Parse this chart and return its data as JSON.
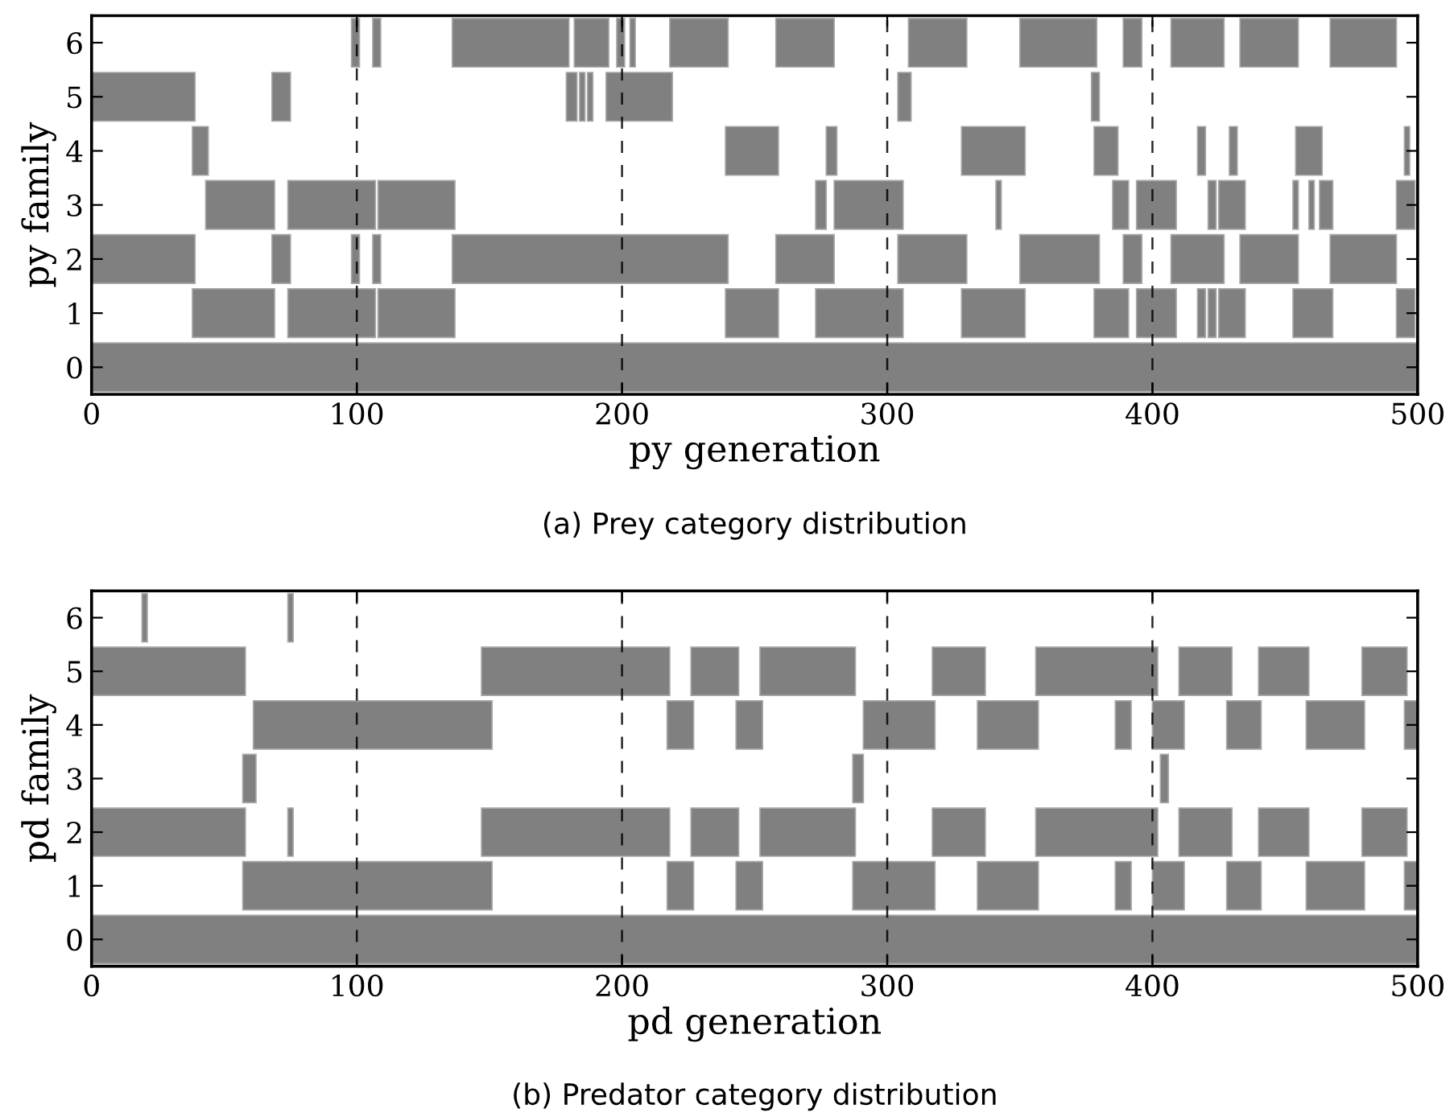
{
  "chart_data": [
    {
      "type": "bar",
      "orientation": "horizontal",
      "xlabel": "py generation",
      "ylabel": "py family",
      "categories": [
        "6",
        "5",
        "4",
        "3",
        "2",
        "1",
        "0"
      ],
      "xlim": [
        0,
        500
      ],
      "xticks": [
        0,
        100,
        200,
        300,
        400,
        500
      ],
      "grid": "x",
      "annotations": [
        "(a) Prey category distribution"
      ],
      "series": [
        {
          "color": "#808080",
          "base": [
            98,
            0,
            38,
            43,
            0,
            38,
            0
          ],
          "values": [
            3,
            39,
            6,
            26,
            39,
            31,
            500
          ]
        },
        {
          "color": "#808080",
          "base": [
            106,
            68,
            239,
            74,
            68,
            74,
            null
          ],
          "values": [
            3,
            7,
            20,
            33,
            7,
            33,
            null
          ]
        },
        {
          "color": "#808080",
          "base": [
            136,
            179,
            277,
            108,
            98,
            108,
            null
          ],
          "values": [
            44,
            4,
            4,
            29,
            3,
            29,
            null
          ]
        },
        {
          "color": "#808080",
          "base": [
            182,
            184,
            328,
            273,
            106,
            239,
            null
          ],
          "values": [
            13,
            2,
            24,
            4,
            3,
            20,
            null
          ]
        },
        {
          "color": "#808080",
          "base": [
            198,
            187,
            378,
            280,
            136,
            273,
            null
          ],
          "values": [
            3,
            2,
            9,
            26,
            104,
            33,
            null
          ]
        },
        {
          "color": "#808080",
          "base": [
            203,
            194,
            417,
            341,
            258,
            328,
            null
          ],
          "values": [
            2,
            25,
            3,
            2,
            22,
            24,
            null
          ]
        },
        {
          "color": "#808080",
          "base": [
            218,
            304,
            429,
            385,
            304,
            378,
            null
          ],
          "values": [
            22,
            5,
            3,
            6,
            26,
            13,
            null
          ]
        },
        {
          "color": "#808080",
          "base": [
            258,
            377,
            454,
            394,
            350,
            394,
            null
          ],
          "values": [
            22,
            3,
            10,
            15,
            30,
            15,
            null
          ]
        },
        {
          "color": "#808080",
          "base": [
            308,
            null,
            495,
            421,
            389,
            417,
            null
          ],
          "values": [
            22,
            null,
            2,
            3,
            7,
            3,
            null
          ]
        },
        {
          "color": "#808080",
          "base": [
            350,
            null,
            null,
            425,
            407,
            421,
            null
          ],
          "values": [
            29,
            null,
            null,
            10,
            20,
            3,
            null
          ]
        },
        {
          "color": "#808080",
          "base": [
            389,
            null,
            null,
            453,
            433,
            425,
            null
          ],
          "values": [
            7,
            null,
            null,
            2,
            22,
            10,
            null
          ]
        },
        {
          "color": "#808080",
          "base": [
            407,
            null,
            null,
            459,
            467,
            453,
            null
          ],
          "values": [
            20,
            null,
            null,
            2,
            25,
            15,
            null
          ]
        },
        {
          "color": "#808080",
          "base": [
            433,
            null,
            null,
            463,
            null,
            492,
            null
          ],
          "values": [
            22,
            null,
            null,
            5,
            null,
            7,
            null
          ]
        },
        {
          "color": "#808080",
          "base": [
            467,
            null,
            null,
            492,
            null,
            null,
            null
          ],
          "values": [
            25,
            null,
            null,
            7,
            null,
            null,
            null
          ]
        }
      ]
    },
    {
      "type": "bar",
      "orientation": "horizontal",
      "xlabel": "pd generation",
      "ylabel": "pd family",
      "categories": [
        "6",
        "5",
        "4",
        "3",
        "2",
        "1",
        "0"
      ],
      "xlim": [
        0,
        500
      ],
      "xticks": [
        0,
        100,
        200,
        300,
        400,
        500
      ],
      "grid": "x",
      "annotations": [
        "(b) Predator category distribution"
      ],
      "series": [
        {
          "color": "#808080",
          "base": [
            19,
            0,
            61,
            57,
            0,
            57,
            0
          ],
          "values": [
            2,
            58,
            90,
            5,
            58,
            94,
            500
          ]
        },
        {
          "color": "#808080",
          "base": [
            74,
            147,
            217,
            287,
            74,
            217,
            null
          ],
          "values": [
            2,
            71,
            10,
            4,
            2,
            10,
            null
          ]
        },
        {
          "color": "#808080",
          "base": [
            null,
            226,
            243,
            403,
            147,
            243,
            null
          ],
          "values": [
            null,
            18,
            10,
            3,
            71,
            10,
            null
          ]
        },
        {
          "color": "#808080",
          "base": [
            null,
            252,
            291,
            null,
            226,
            287,
            null
          ],
          "values": [
            null,
            36,
            27,
            null,
            18,
            31,
            null
          ]
        },
        {
          "color": "#808080",
          "base": [
            null,
            317,
            334,
            null,
            252,
            334,
            null
          ],
          "values": [
            null,
            20,
            23,
            null,
            36,
            23,
            null
          ]
        },
        {
          "color": "#808080",
          "base": [
            null,
            356,
            386,
            null,
            317,
            386,
            null
          ],
          "values": [
            null,
            46,
            6,
            null,
            20,
            6,
            null
          ]
        },
        {
          "color": "#808080",
          "base": [
            null,
            410,
            400,
            null,
            356,
            400,
            null
          ],
          "values": [
            null,
            20,
            12,
            null,
            46,
            12,
            null
          ]
        },
        {
          "color": "#808080",
          "base": [
            null,
            440,
            428,
            null,
            410,
            428,
            null
          ],
          "values": [
            null,
            19,
            13,
            null,
            20,
            13,
            null
          ]
        },
        {
          "color": "#808080",
          "base": [
            null,
            479,
            458,
            null,
            440,
            458,
            null
          ],
          "values": [
            null,
            17,
            22,
            null,
            19,
            22,
            null
          ]
        },
        {
          "color": "#808080",
          "base": [
            null,
            null,
            495,
            null,
            479,
            495,
            null
          ],
          "values": [
            null,
            null,
            5,
            null,
            17,
            5,
            null
          ]
        }
      ]
    }
  ]
}
